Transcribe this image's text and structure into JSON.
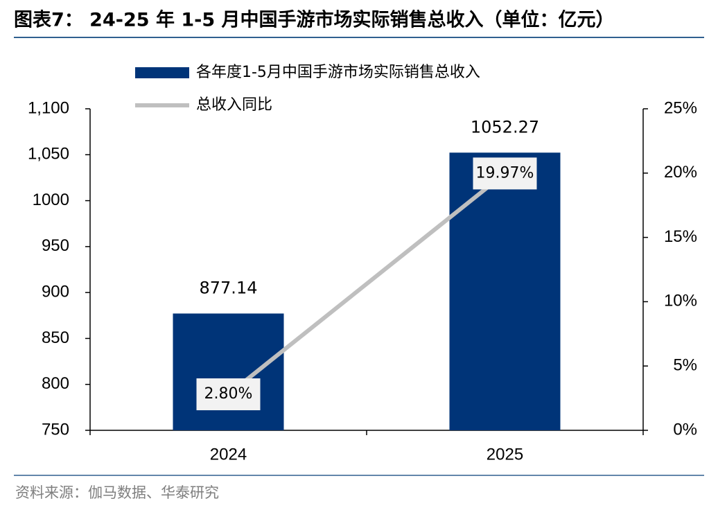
{
  "chart_data": {
    "type": "bar",
    "title": "图表7： 24-25 年 1-5 月中国手游市场实际销售总收入（单位：亿元）",
    "source": "资料来源：伽马数据、华泰研究",
    "categories": [
      "2024",
      "2025"
    ],
    "series": [
      {
        "name": "各年度1-5月中国手游市场实际销售总收入",
        "type": "bar",
        "color": "#003478",
        "values": [
          877.14,
          1052.27
        ]
      },
      {
        "name": "总收入同比",
        "type": "line",
        "axis": "y2",
        "color": "#bfbfbf",
        "values": [
          2.8,
          19.97
        ],
        "value_labels": [
          "2.80%",
          "19.97%"
        ]
      }
    ],
    "ylim": [
      750,
      1100
    ],
    "yticks": [
      750,
      800,
      850,
      900,
      950,
      1000,
      {
        "value": 1050,
        "label": "1,050"
      },
      {
        "value": 1100,
        "label": "1,100"
      }
    ],
    "y2lim": [
      0,
      25
    ],
    "y2ticks": [
      {
        "value": 0,
        "label": "0%"
      },
      {
        "value": 5,
        "label": "5%"
      },
      {
        "value": 10,
        "label": "10%"
      },
      {
        "value": 15,
        "label": "15%"
      },
      {
        "value": 20,
        "label": "20%"
      },
      {
        "value": 25,
        "label": "25%"
      }
    ],
    "grid": false,
    "legend": "top-left"
  }
}
